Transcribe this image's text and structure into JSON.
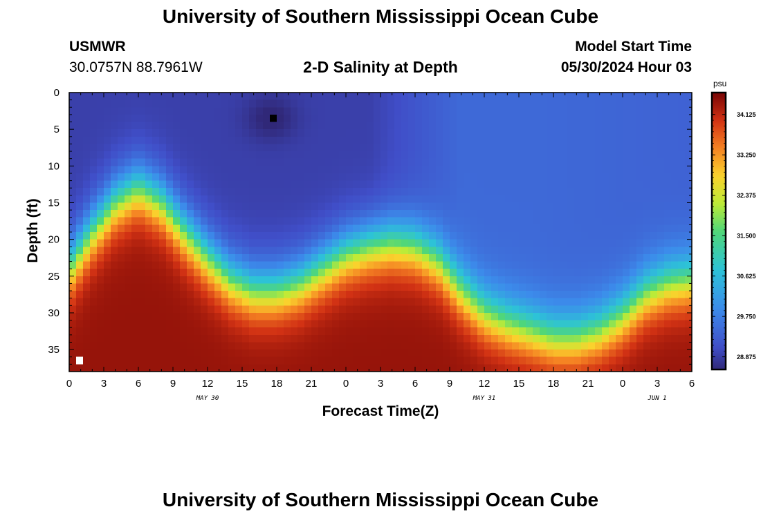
{
  "header": {
    "title_top": "University of Southern Mississippi Ocean Cube",
    "title_bottom": "University of Southern Mississippi Ocean Cube",
    "station": "USMWR",
    "coords": "30.0757N  88.7961W",
    "plot_title": "2-D Salinity at Depth",
    "start_label": "Model Start Time",
    "start_value": "05/30/2024 Hour 03"
  },
  "chart_data": {
    "type": "heatmap",
    "title": "2-D Salinity at Depth",
    "xlabel": "Forecast Time(Z)",
    "ylabel": "Depth (ft)",
    "x_ticks": [
      "0",
      "3",
      "6",
      "9",
      "12",
      "15",
      "18",
      "21",
      "0",
      "3",
      "6",
      "9",
      "12",
      "15",
      "18",
      "21",
      "0",
      "3",
      "6"
    ],
    "x_dates": [
      "MAY 30",
      "MAY 31",
      "JUN 1"
    ],
    "y_ticks": [
      "0",
      "5",
      "10",
      "15",
      "20",
      "25",
      "30",
      "35"
    ],
    "xlim": [
      0,
      54
    ],
    "ylim": [
      0,
      38
    ],
    "colorbar": {
      "unit": "psu",
      "ticks": [
        "34.125",
        "33.250",
        "32.375",
        "31.500",
        "30.625",
        "29.750",
        "28.875"
      ],
      "range": [
        28.6,
        34.6
      ]
    },
    "halocline_depth_ft": [
      [
        0,
        24
      ],
      [
        2,
        19
      ],
      [
        4,
        15
      ],
      [
        6,
        13
      ],
      [
        8,
        15
      ],
      [
        10,
        19
      ],
      [
        12,
        22.5
      ],
      [
        14,
        25.5
      ],
      [
        16,
        27
      ],
      [
        18,
        27
      ],
      [
        20,
        26
      ],
      [
        22,
        24
      ],
      [
        24,
        22
      ],
      [
        26,
        21
      ],
      [
        28,
        20.5
      ],
      [
        30,
        21
      ],
      [
        32,
        23
      ],
      [
        34,
        27
      ],
      [
        36,
        30
      ],
      [
        38,
        31.5
      ],
      [
        40,
        32.5
      ],
      [
        42,
        33.5
      ],
      [
        44,
        33.5
      ],
      [
        46,
        32.5
      ],
      [
        48,
        30.5
      ],
      [
        50,
        27.5
      ],
      [
        52,
        26
      ],
      [
        54,
        25.5
      ]
    ],
    "bottom_salinity_psu": 34.4,
    "surface_salinity_psu": 28.9
  }
}
